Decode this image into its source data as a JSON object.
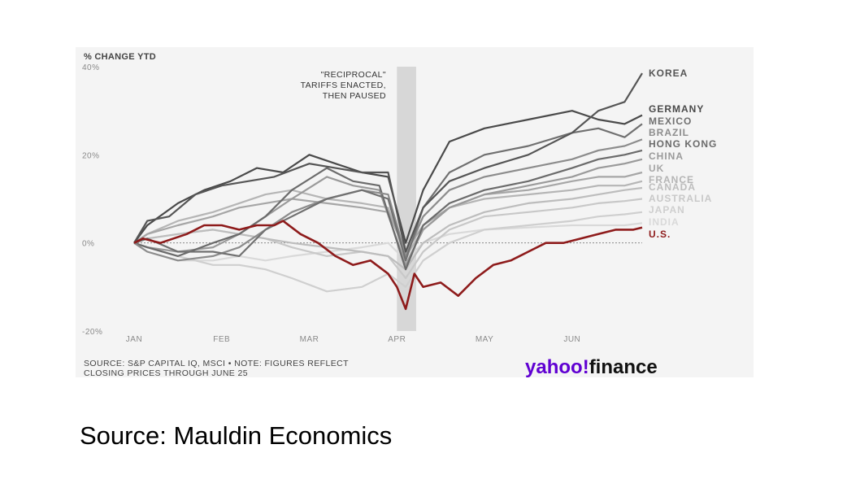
{
  "chart_data": {
    "type": "line",
    "ylabel": "% CHANGE YTD",
    "ylim": [
      -20,
      40
    ],
    "yticks": [
      "40%",
      "20%",
      "0%",
      "-20%"
    ],
    "ytick_values": [
      40,
      20,
      0,
      -20
    ],
    "xticks": [
      "JAN",
      "FEB",
      "MAR",
      "APR",
      "MAY",
      "JUN"
    ],
    "xtick_positions": [
      0,
      1,
      2,
      3,
      4,
      5
    ],
    "xlim": [
      0,
      5.8
    ],
    "annotation": {
      "lines": [
        "\"RECIPROCAL\"",
        "TARIFFS ENACTED,",
        "THEN PAUSED"
      ],
      "band": [
        3.0,
        3.22
      ]
    },
    "zero_line": true,
    "series": [
      {
        "name": "KOREA",
        "color": "#555555",
        "end": 38.5,
        "points": [
          [
            0,
            0
          ],
          [
            0.15,
            5
          ],
          [
            0.4,
            6
          ],
          [
            0.7,
            11
          ],
          [
            1,
            13
          ],
          [
            1.3,
            14
          ],
          [
            1.6,
            15
          ],
          [
            2,
            18
          ],
          [
            2.3,
            17
          ],
          [
            2.6,
            16
          ],
          [
            2.9,
            16
          ],
          [
            3.1,
            -2
          ],
          [
            3.3,
            8
          ],
          [
            3.6,
            14
          ],
          [
            4,
            17
          ],
          [
            4.5,
            20
          ],
          [
            5,
            25
          ],
          [
            5.3,
            30
          ],
          [
            5.6,
            32
          ],
          [
            5.8,
            38.5
          ]
        ]
      },
      {
        "name": "GERMANY",
        "color": "#4a4a4a",
        "end": 29,
        "points": [
          [
            0,
            0
          ],
          [
            0.15,
            4
          ],
          [
            0.5,
            9
          ],
          [
            0.8,
            12
          ],
          [
            1.1,
            14
          ],
          [
            1.4,
            17
          ],
          [
            1.7,
            16
          ],
          [
            2,
            20
          ],
          [
            2.3,
            18
          ],
          [
            2.6,
            16
          ],
          [
            2.9,
            15
          ],
          [
            3.1,
            0
          ],
          [
            3.3,
            12
          ],
          [
            3.6,
            23
          ],
          [
            4,
            26
          ],
          [
            4.5,
            28
          ],
          [
            5,
            30
          ],
          [
            5.3,
            28
          ],
          [
            5.6,
            27
          ],
          [
            5.8,
            29
          ]
        ]
      },
      {
        "name": "MEXICO",
        "color": "#707070",
        "end": 27,
        "points": [
          [
            0,
            0
          ],
          [
            0.15,
            1
          ],
          [
            0.5,
            -2
          ],
          [
            0.9,
            -2
          ],
          [
            1.2,
            -3
          ],
          [
            1.5,
            3
          ],
          [
            1.8,
            6
          ],
          [
            2.2,
            10
          ],
          [
            2.6,
            12
          ],
          [
            2.9,
            10
          ],
          [
            3.1,
            -4
          ],
          [
            3.3,
            8
          ],
          [
            3.6,
            16
          ],
          [
            4,
            20
          ],
          [
            4.5,
            22
          ],
          [
            5,
            25
          ],
          [
            5.3,
            26
          ],
          [
            5.6,
            24
          ],
          [
            5.8,
            27
          ]
        ]
      },
      {
        "name": "BRAZIL",
        "color": "#8c8c8c",
        "end": 23.5,
        "points": [
          [
            0,
            0
          ],
          [
            0.15,
            -2
          ],
          [
            0.5,
            -4
          ],
          [
            0.9,
            -3
          ],
          [
            1.2,
            -1
          ],
          [
            1.5,
            3
          ],
          [
            1.8,
            7
          ],
          [
            2.2,
            10
          ],
          [
            2.6,
            12
          ],
          [
            2.9,
            11
          ],
          [
            3.1,
            -3
          ],
          [
            3.3,
            6
          ],
          [
            3.6,
            12
          ],
          [
            4,
            15
          ],
          [
            4.5,
            17
          ],
          [
            5,
            19
          ],
          [
            5.3,
            21
          ],
          [
            5.6,
            22
          ],
          [
            5.8,
            23.5
          ]
        ]
      },
      {
        "name": "HONG KONG",
        "color": "#6b6b6b",
        "end": 21,
        "points": [
          [
            0,
            0
          ],
          [
            0.15,
            -1
          ],
          [
            0.5,
            -3
          ],
          [
            0.9,
            0
          ],
          [
            1.2,
            2
          ],
          [
            1.5,
            6
          ],
          [
            1.8,
            12
          ],
          [
            2.2,
            17
          ],
          [
            2.5,
            14
          ],
          [
            2.8,
            13
          ],
          [
            3.1,
            -6
          ],
          [
            3.3,
            4
          ],
          [
            3.6,
            9
          ],
          [
            4,
            12
          ],
          [
            4.5,
            14
          ],
          [
            5,
            17
          ],
          [
            5.3,
            19
          ],
          [
            5.6,
            20
          ],
          [
            5.8,
            21
          ]
        ]
      },
      {
        "name": "CHINA",
        "color": "#9a9a9a",
        "end": 19,
        "points": [
          [
            0,
            0
          ],
          [
            0.15,
            -1
          ],
          [
            0.5,
            -2
          ],
          [
            0.9,
            -1
          ],
          [
            1.2,
            2
          ],
          [
            1.5,
            6
          ],
          [
            1.8,
            10
          ],
          [
            2.2,
            15
          ],
          [
            2.5,
            13
          ],
          [
            2.8,
            12
          ],
          [
            3.1,
            -5
          ],
          [
            3.3,
            3
          ],
          [
            3.6,
            8
          ],
          [
            4,
            11
          ],
          [
            4.5,
            13
          ],
          [
            5,
            15
          ],
          [
            5.3,
            17
          ],
          [
            5.6,
            18
          ],
          [
            5.8,
            19
          ]
        ]
      },
      {
        "name": "UK",
        "color": "#a6a6a6",
        "end": 16,
        "points": [
          [
            0,
            0
          ],
          [
            0.15,
            2
          ],
          [
            0.5,
            4
          ],
          [
            0.9,
            6
          ],
          [
            1.2,
            8
          ],
          [
            1.5,
            9
          ],
          [
            1.8,
            10
          ],
          [
            2.2,
            9
          ],
          [
            2.6,
            8
          ],
          [
            2.9,
            7
          ],
          [
            3.1,
            -2
          ],
          [
            3.3,
            4
          ],
          [
            3.6,
            8
          ],
          [
            4,
            11
          ],
          [
            4.5,
            12
          ],
          [
            5,
            14
          ],
          [
            5.3,
            15
          ],
          [
            5.6,
            15
          ],
          [
            5.8,
            16
          ]
        ]
      },
      {
        "name": "FRANCE",
        "color": "#b5b5b5",
        "end": 14,
        "points": [
          [
            0,
            0
          ],
          [
            0.15,
            2
          ],
          [
            0.5,
            5
          ],
          [
            0.9,
            7
          ],
          [
            1.2,
            9
          ],
          [
            1.5,
            11
          ],
          [
            1.8,
            12
          ],
          [
            2.2,
            10
          ],
          [
            2.6,
            9
          ],
          [
            2.9,
            8
          ],
          [
            3.1,
            -3
          ],
          [
            3.3,
            3
          ],
          [
            3.6,
            8
          ],
          [
            4,
            10
          ],
          [
            4.5,
            11
          ],
          [
            5,
            12
          ],
          [
            5.3,
            13
          ],
          [
            5.6,
            13
          ],
          [
            5.8,
            14
          ]
        ]
      },
      {
        "name": "CANADA",
        "color": "#bdbdbd",
        "end": 12.5,
        "points": [
          [
            0,
            0
          ],
          [
            0.15,
            1
          ],
          [
            0.5,
            2
          ],
          [
            0.9,
            3
          ],
          [
            1.2,
            2
          ],
          [
            1.5,
            1
          ],
          [
            1.8,
            0
          ],
          [
            2.2,
            -1
          ],
          [
            2.6,
            -2
          ],
          [
            2.9,
            -3
          ],
          [
            3.1,
            -6
          ],
          [
            3.3,
            0
          ],
          [
            3.6,
            4
          ],
          [
            4,
            7
          ],
          [
            4.5,
            9
          ],
          [
            5,
            10
          ],
          [
            5.3,
            11
          ],
          [
            5.6,
            12
          ],
          [
            5.8,
            12.5
          ]
        ]
      },
      {
        "name": "AUSTRALIA",
        "color": "#c8c8c8",
        "end": 10,
        "points": [
          [
            0,
            0
          ],
          [
            0.15,
            1
          ],
          [
            0.5,
            2
          ],
          [
            0.9,
            3
          ],
          [
            1.2,
            2
          ],
          [
            1.5,
            1
          ],
          [
            1.8,
            -1
          ],
          [
            2.2,
            -3
          ],
          [
            2.6,
            -2
          ],
          [
            2.9,
            -3
          ],
          [
            3.1,
            -8
          ],
          [
            3.3,
            -2
          ],
          [
            3.6,
            3
          ],
          [
            4,
            6
          ],
          [
            4.5,
            7
          ],
          [
            5,
            8
          ],
          [
            5.3,
            9
          ],
          [
            5.6,
            9.5
          ],
          [
            5.8,
            10
          ]
        ]
      },
      {
        "name": "JAPAN",
        "color": "#cfcfcf",
        "end": 7,
        "points": [
          [
            0,
            0
          ],
          [
            0.15,
            -1
          ],
          [
            0.5,
            -3
          ],
          [
            0.9,
            -5
          ],
          [
            1.2,
            -5
          ],
          [
            1.5,
            -6
          ],
          [
            1.8,
            -8
          ],
          [
            2.2,
            -11
          ],
          [
            2.6,
            -10
          ],
          [
            2.9,
            -7
          ],
          [
            3.1,
            -10
          ],
          [
            3.3,
            -4
          ],
          [
            3.6,
            0
          ],
          [
            4,
            3
          ],
          [
            4.5,
            4
          ],
          [
            5,
            5
          ],
          [
            5.3,
            6
          ],
          [
            5.6,
            6.5
          ],
          [
            5.8,
            7
          ]
        ]
      },
      {
        "name": "INDIA",
        "color": "#d9d9d9",
        "end": 4.5,
        "points": [
          [
            0,
            0
          ],
          [
            0.15,
            -2
          ],
          [
            0.5,
            -4
          ],
          [
            0.9,
            -4
          ],
          [
            1.2,
            -3
          ],
          [
            1.5,
            -4
          ],
          [
            1.8,
            -3
          ],
          [
            2.2,
            -2
          ],
          [
            2.6,
            -1
          ],
          [
            2.9,
            0
          ],
          [
            3.1,
            -4
          ],
          [
            3.3,
            0
          ],
          [
            3.6,
            2
          ],
          [
            4,
            3
          ],
          [
            4.5,
            3.5
          ],
          [
            5,
            4
          ],
          [
            5.3,
            4
          ],
          [
            5.6,
            4
          ],
          [
            5.8,
            4.5
          ]
        ]
      },
      {
        "name": "U.S.",
        "color": "#8e1b1b",
        "end": 3.5,
        "points": [
          [
            0,
            0
          ],
          [
            0.1,
            1
          ],
          [
            0.3,
            0
          ],
          [
            0.6,
            2
          ],
          [
            0.8,
            4
          ],
          [
            1,
            4
          ],
          [
            1.2,
            3
          ],
          [
            1.4,
            4
          ],
          [
            1.6,
            4
          ],
          [
            1.7,
            5
          ],
          [
            1.9,
            2
          ],
          [
            2.1,
            0
          ],
          [
            2.3,
            -3
          ],
          [
            2.5,
            -5
          ],
          [
            2.7,
            -4
          ],
          [
            2.9,
            -7
          ],
          [
            3.0,
            -10
          ],
          [
            3.1,
            -15
          ],
          [
            3.2,
            -7
          ],
          [
            3.3,
            -10
          ],
          [
            3.5,
            -9
          ],
          [
            3.7,
            -12
          ],
          [
            3.9,
            -8
          ],
          [
            4.1,
            -5
          ],
          [
            4.3,
            -4
          ],
          [
            4.5,
            -2
          ],
          [
            4.7,
            0
          ],
          [
            4.9,
            0
          ],
          [
            5.1,
            1
          ],
          [
            5.3,
            2
          ],
          [
            5.5,
            3
          ],
          [
            5.7,
            3
          ],
          [
            5.8,
            3.5
          ]
        ]
      }
    ],
    "source": [
      "SOURCE: S&P CAPITAL IQ, MSCI • NOTE: FIGURES REFLECT",
      "CLOSING PRICES THROUGH JUNE 25"
    ]
  },
  "logo": {
    "part1": "yahoo",
    "part2": "finance",
    "slash": "!"
  },
  "caption": "Source: Mauldin Economics"
}
